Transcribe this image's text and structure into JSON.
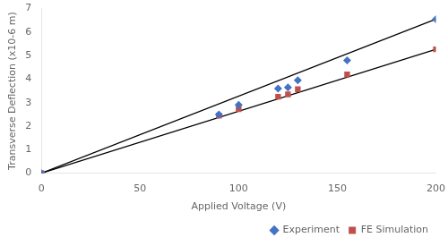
{
  "chart_data": {
    "type": "scatter",
    "x_label": "Applied Voltage (V)",
    "y_label": "Transverse Deflection (x10-6 m)",
    "series": [
      {
        "type": "line",
        "color": "#000000",
        "x": [
          0,
          200
        ],
        "values": [
          0,
          6.55
        ]
      },
      {
        "type": "line",
        "color": "#000000",
        "x": [
          0,
          200
        ],
        "values": [
          0,
          5.27
        ]
      },
      {
        "name": "Experiment",
        "color": "#4472C4",
        "marker": "diamond",
        "x": [
          0,
          90,
          100,
          120,
          125,
          130,
          155,
          200
        ],
        "values": [
          0,
          2.5,
          2.9,
          3.6,
          3.65,
          3.95,
          4.8,
          6.55
        ]
      },
      {
        "name": "FE Simulation",
        "color": "#C0504D",
        "marker": "square",
        "x": [
          0,
          90,
          100,
          120,
          125,
          130,
          155,
          200
        ],
        "values": [
          0,
          2.45,
          2.72,
          3.25,
          3.35,
          3.57,
          4.2,
          5.27
        ]
      }
    ],
    "xlim": [
      0,
      200
    ],
    "ylim": [
      0,
      7
    ],
    "xticks": [
      0,
      50,
      100,
      150,
      200
    ],
    "yticks": [
      0,
      1,
      2,
      3,
      4,
      5,
      6,
      7
    ],
    "grid": false,
    "legend": "lower right"
  }
}
